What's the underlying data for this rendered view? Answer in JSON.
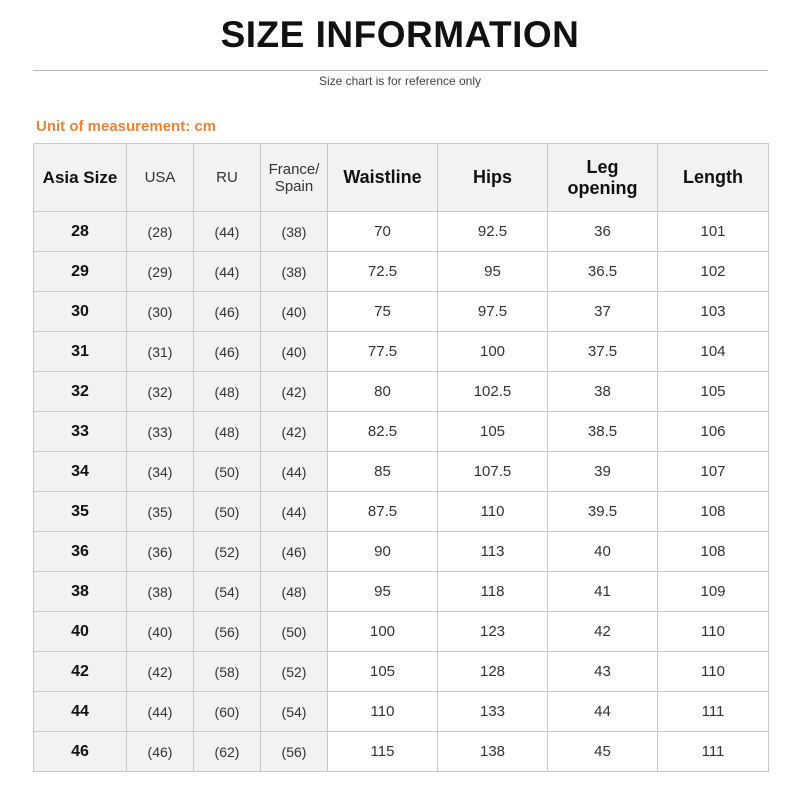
{
  "title": "SIZE INFORMATION",
  "subtitle": "Size chart is for reference only",
  "unit_label": "Unit of measurement: cm",
  "accent_color": "#e8853a",
  "table": {
    "headers": [
      "Asia Size",
      "USA",
      "RU",
      "France/ Spain",
      "Waistline",
      "Hips",
      "Leg opening",
      "Length"
    ],
    "rows": [
      [
        "28",
        "(28)",
        "(44)",
        "(38)",
        "70",
        "92.5",
        "36",
        "101"
      ],
      [
        "29",
        "(29)",
        "(44)",
        "(38)",
        "72.5",
        "95",
        "36.5",
        "102"
      ],
      [
        "30",
        "(30)",
        "(46)",
        "(40)",
        "75",
        "97.5",
        "37",
        "103"
      ],
      [
        "31",
        "(31)",
        "(46)",
        "(40)",
        "77.5",
        "100",
        "37.5",
        "104"
      ],
      [
        "32",
        "(32)",
        "(48)",
        "(42)",
        "80",
        "102.5",
        "38",
        "105"
      ],
      [
        "33",
        "(33)",
        "(48)",
        "(42)",
        "82.5",
        "105",
        "38.5",
        "106"
      ],
      [
        "34",
        "(34)",
        "(50)",
        "(44)",
        "85",
        "107.5",
        "39",
        "107"
      ],
      [
        "35",
        "(35)",
        "(50)",
        "(44)",
        "87.5",
        "110",
        "39.5",
        "108"
      ],
      [
        "36",
        "(36)",
        "(52)",
        "(46)",
        "90",
        "113",
        "40",
        "108"
      ],
      [
        "38",
        "(38)",
        "(54)",
        "(48)",
        "95",
        "118",
        "41",
        "109"
      ],
      [
        "40",
        "(40)",
        "(56)",
        "(50)",
        "100",
        "123",
        "42",
        "110"
      ],
      [
        "42",
        "(42)",
        "(58)",
        "(52)",
        "105",
        "128",
        "43",
        "110"
      ],
      [
        "44",
        "(44)",
        "(60)",
        "(54)",
        "110",
        "133",
        "44",
        "111"
      ],
      [
        "46",
        "(46)",
        "(62)",
        "(56)",
        "115",
        "138",
        "45",
        "111"
      ]
    ]
  }
}
